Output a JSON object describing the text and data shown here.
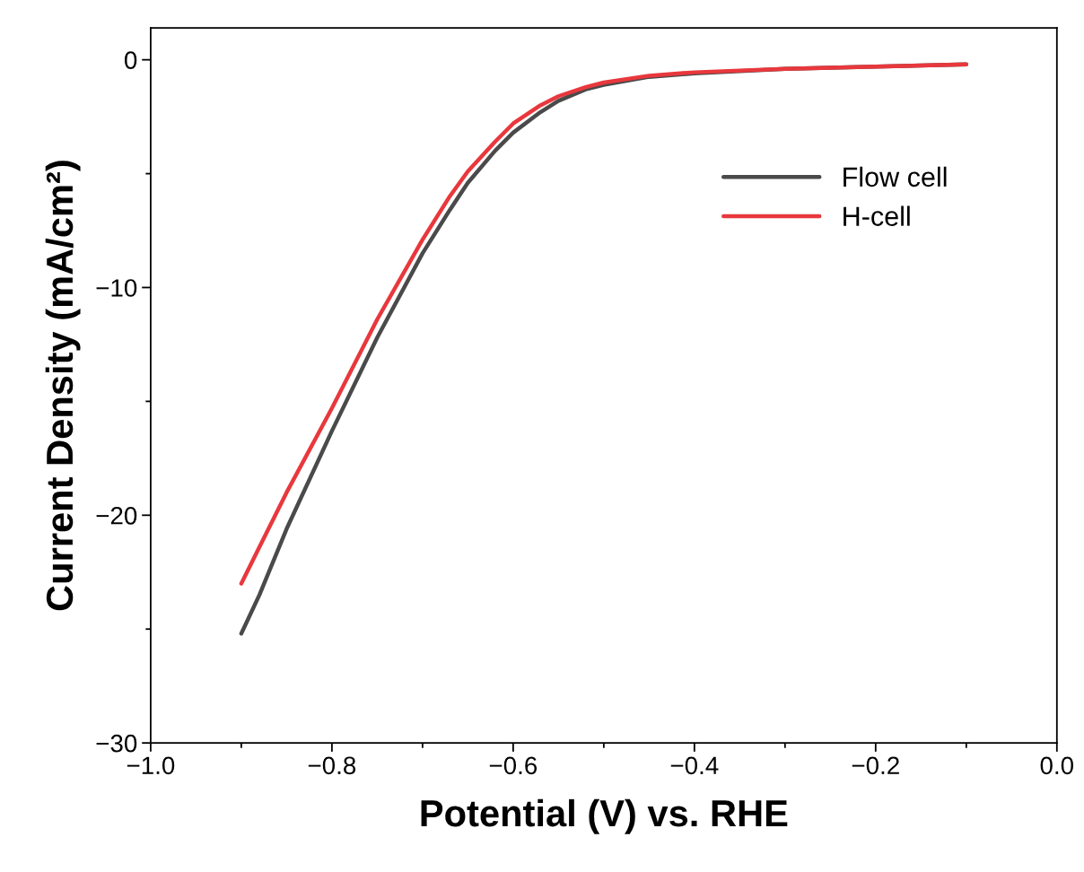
{
  "chart_data": {
    "type": "line",
    "xlabel": "Potential (V) vs. RHE",
    "ylabel": "Current Density (mA/cm²)",
    "xlim": [
      -1.0,
      0.0
    ],
    "ylim": [
      -30,
      1.4
    ],
    "xticks": [
      {
        "value": -1.0,
        "label": "−1.0"
      },
      {
        "value": -0.8,
        "label": "−0.8"
      },
      {
        "value": -0.6,
        "label": "−0.6"
      },
      {
        "value": -0.4,
        "label": "−0.4"
      },
      {
        "value": -0.2,
        "label": "−0.2"
      },
      {
        "value": 0.0,
        "label": "0.0"
      }
    ],
    "yticks": [
      {
        "value": -30,
        "label": "−30"
      },
      {
        "value": -20,
        "label": "−20"
      },
      {
        "value": -10,
        "label": "−10"
      },
      0
    ],
    "legend": "top right",
    "grid": false,
    "marker": "none",
    "line_style": "solid",
    "series": [
      {
        "name": "Flow cell",
        "color": "#4a4a4a",
        "x": [
          -0.9,
          -0.88,
          -0.85,
          -0.8,
          -0.75,
          -0.7,
          -0.67,
          -0.65,
          -0.62,
          -0.6,
          -0.57,
          -0.55,
          -0.52,
          -0.5,
          -0.45,
          -0.4,
          -0.3,
          -0.2,
          -0.1
        ],
        "values": [
          -25.2,
          -23.5,
          -20.6,
          -16.3,
          -12.2,
          -8.5,
          -6.6,
          -5.4,
          -4.0,
          -3.2,
          -2.3,
          -1.8,
          -1.3,
          -1.1,
          -0.75,
          -0.6,
          -0.4,
          -0.3,
          -0.2
        ]
      },
      {
        "name": "H-cell",
        "color": "#e8383d",
        "x": [
          -0.9,
          -0.88,
          -0.85,
          -0.8,
          -0.75,
          -0.7,
          -0.67,
          -0.65,
          -0.62,
          -0.6,
          -0.57,
          -0.55,
          -0.52,
          -0.5,
          -0.45,
          -0.4,
          -0.3,
          -0.2,
          -0.1
        ],
        "values": [
          -23.0,
          -21.4,
          -19.0,
          -15.3,
          -11.4,
          -7.9,
          -6.0,
          -4.9,
          -3.6,
          -2.8,
          -2.0,
          -1.6,
          -1.2,
          -1.0,
          -0.7,
          -0.55,
          -0.4,
          -0.3,
          -0.2
        ]
      }
    ]
  }
}
